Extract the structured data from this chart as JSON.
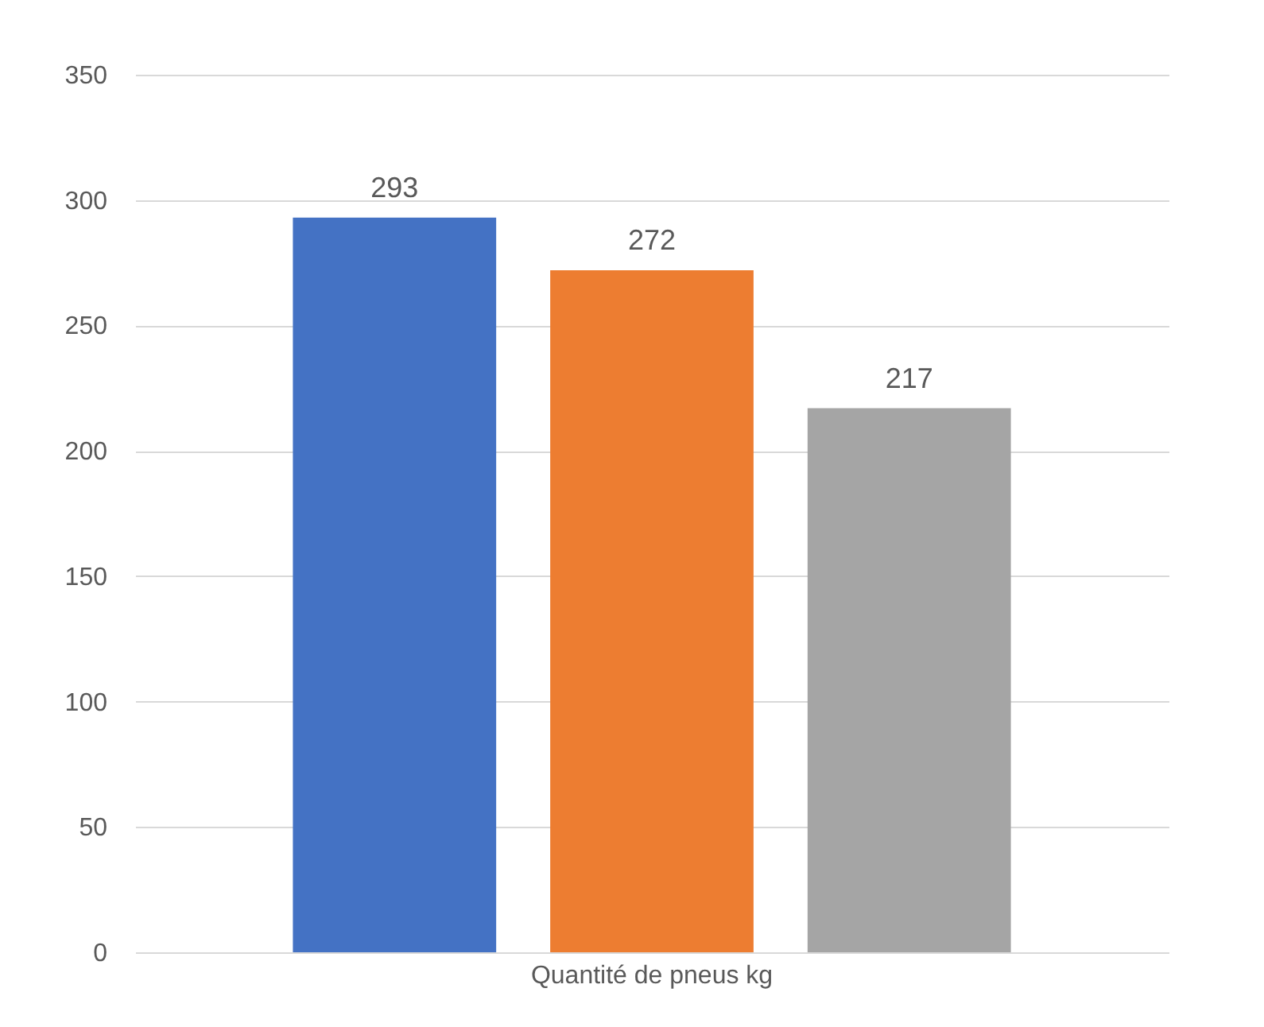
{
  "chart_data": {
    "type": "bar",
    "categories": [
      "Quantité de pneus kg"
    ],
    "series": [
      {
        "color": "#4472c4",
        "values": [
          293
        ]
      },
      {
        "color": "#ed7d31",
        "values": [
          272
        ]
      },
      {
        "color": "#a5a5a5",
        "values": [
          217
        ]
      }
    ],
    "ylim": [
      0,
      350
    ],
    "yticks": [
      0,
      50,
      100,
      150,
      200,
      250,
      300,
      350
    ],
    "grid": "y",
    "data_labels": true
  }
}
